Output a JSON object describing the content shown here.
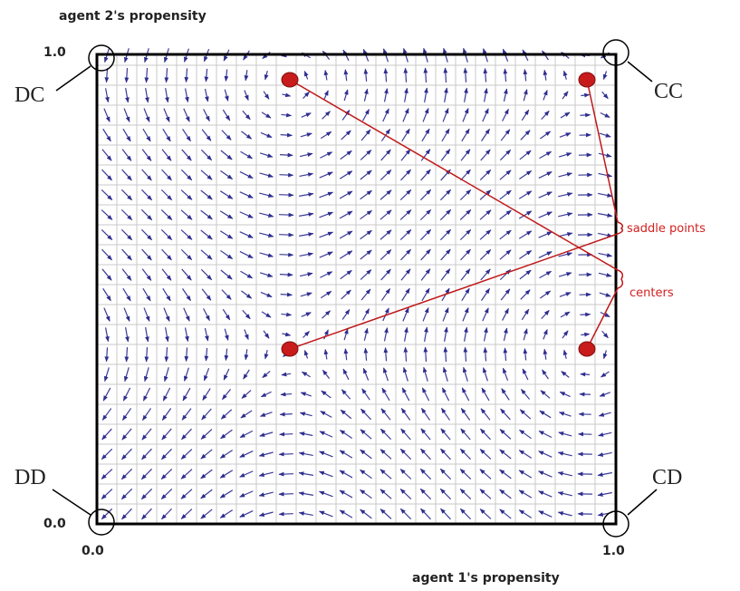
{
  "y_axis_label": "agent 2's propensity",
  "x_axis_label": "agent 1's propensity",
  "y_ticks": [
    "1.0",
    "0.0"
  ],
  "x_ticks": [
    "0.0",
    "1.0"
  ],
  "corners": {
    "dc": "DC",
    "cc": "CC",
    "dd": "DD",
    "cd": "CD"
  },
  "annotations": {
    "saddle_points": "saddle points",
    "centers": "centers"
  }
}
